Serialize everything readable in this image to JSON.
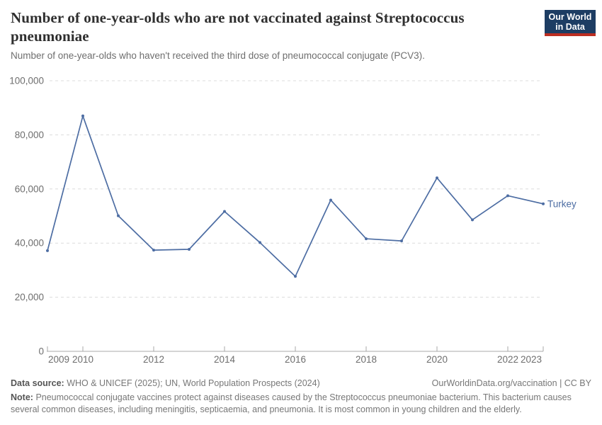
{
  "header": {
    "title": "Number of one-year-olds who are not vaccinated against Streptococcus pneumoniae",
    "subtitle": "Number of one-year-olds who haven't received the third dose of pneumococcal conjugate (PCV3).",
    "logo": {
      "line1": "Our World",
      "line2": "in Data"
    }
  },
  "chart_data": {
    "type": "line",
    "title": "Number of one-year-olds who are not vaccinated against Streptococcus pneumoniae",
    "x": [
      2009,
      2010,
      2011,
      2012,
      2013,
      2014,
      2015,
      2016,
      2017,
      2018,
      2019,
      2020,
      2021,
      2022,
      2023
    ],
    "series": [
      {
        "name": "Turkey",
        "color": "#4d6da3",
        "values": [
          37200,
          87000,
          50100,
          37400,
          37700,
          51700,
          40200,
          27700,
          55900,
          41600,
          40800,
          64100,
          48600,
          57500,
          54500
        ]
      }
    ],
    "xlim": [
      2009,
      2023
    ],
    "ylim": [
      0,
      100000
    ],
    "yticks": [
      {
        "value": 0,
        "label": "0"
      },
      {
        "value": 20000,
        "label": "20,000"
      },
      {
        "value": 40000,
        "label": "40,000"
      },
      {
        "value": 60000,
        "label": "60,000"
      },
      {
        "value": 80000,
        "label": "80,000"
      },
      {
        "value": 100000,
        "label": "100,000"
      }
    ],
    "xticks": [
      {
        "value": 2009,
        "label": "2009"
      },
      {
        "value": 2010,
        "label": "2010"
      },
      {
        "value": 2012,
        "label": "2012"
      },
      {
        "value": 2014,
        "label": "2014"
      },
      {
        "value": 2016,
        "label": "2016"
      },
      {
        "value": 2018,
        "label": "2018"
      },
      {
        "value": 2020,
        "label": "2020"
      },
      {
        "value": 2022,
        "label": "2022"
      },
      {
        "value": 2023,
        "label": "2023"
      }
    ],
    "grid": "horizontal dashed",
    "legend_position": "end-of-line label"
  },
  "footer": {
    "data_source_label": "Data source:",
    "data_source_text": "WHO & UNICEF (2025); UN, World Population Prospects (2024)",
    "link_text": "OurWorldinData.org/vaccination | CC BY",
    "note_label": "Note:",
    "note_text": "Pneumococcal conjugate vaccines protect against diseases caused by the Streptococcus pneumoniae bacterium. This bacterium causes several common diseases, including meningitis, septicaemia, and pneumonia. It is most common in young children and the elderly."
  },
  "colors": {
    "line": "#4d6da3",
    "logo_navy": "#1d3d63",
    "logo_red": "#bc2e22",
    "grid": "#dcdcdc",
    "axis": "#a8a8a8",
    "tick_text": "#6e6e6e"
  }
}
